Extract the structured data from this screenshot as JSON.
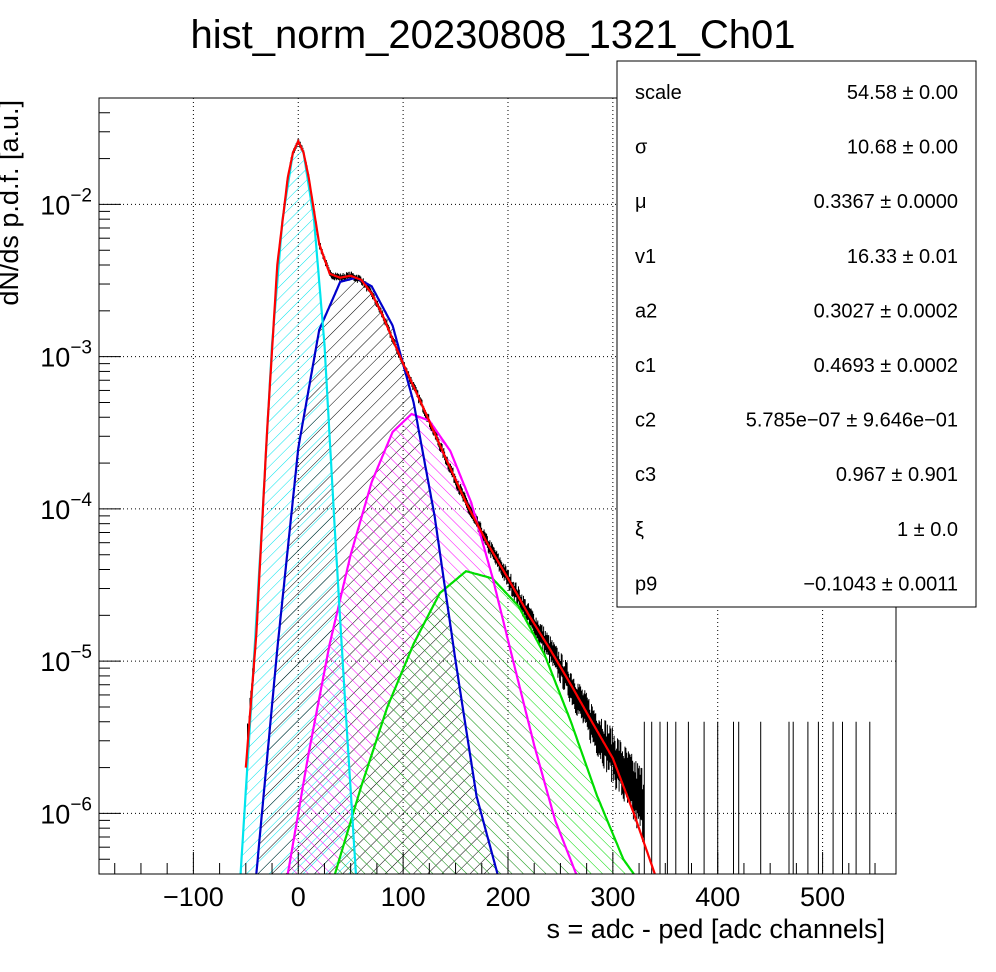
{
  "chart_data": {
    "type": "line",
    "title": "hist_norm_20230808_1321_Ch01",
    "xlabel": "s = adc - ped [adc channels]",
    "ylabel": "dN/ds p.d.f. [a.u.]",
    "xlim": [
      -190,
      570
    ],
    "ylim": [
      4e-07,
      0.05
    ],
    "log_y": true,
    "grid": true,
    "legend": "top-right",
    "x_ticks": [
      {
        "value": -100,
        "label": "−100"
      },
      {
        "value": 0,
        "label": "0"
      },
      {
        "value": 100,
        "label": "100"
      },
      {
        "value": 200,
        "label": "200"
      },
      {
        "value": 300,
        "label": "300"
      },
      {
        "value": 400,
        "label": "400"
      },
      {
        "value": 500,
        "label": "500"
      }
    ],
    "y_ticks": [
      {
        "value": 1e-06,
        "base": "10",
        "exp": "−6"
      },
      {
        "value": 1e-05,
        "base": "10",
        "exp": "−5"
      },
      {
        "value": 0.0001,
        "base": "10",
        "exp": "−4"
      },
      {
        "value": 0.001,
        "base": "10",
        "exp": "−3"
      },
      {
        "value": 0.01,
        "base": "10",
        "exp": "−2"
      }
    ],
    "histogram": {
      "color": "#000000",
      "x": [
        -50,
        -40,
        -30,
        -20,
        -10,
        -5,
        0,
        5,
        10,
        20,
        30,
        40,
        50,
        60,
        70,
        80,
        90,
        100,
        120,
        140,
        160,
        180,
        200,
        220,
        240,
        260,
        280,
        300,
        320,
        340
      ],
      "y": [
        2e-06,
        1.5e-05,
        0.0003,
        0.004,
        0.015,
        0.022,
        0.026,
        0.022,
        0.015,
        0.0055,
        0.0035,
        0.0033,
        0.0034,
        0.0032,
        0.0026,
        0.0019,
        0.0013,
        0.0009,
        0.00045,
        0.00022,
        0.00011,
        6e-05,
        3.5e-05,
        2e-05,
        1.2e-05,
        7e-06,
        4e-06,
        2.5e-06,
        1.5e-06,
        1e-06
      ]
    },
    "series": [
      {
        "color": "#ff0000",
        "x": [
          -50,
          -40,
          -30,
          -20,
          -10,
          -5,
          0,
          5,
          10,
          20,
          30,
          40,
          50,
          60,
          70,
          80,
          90,
          100,
          120,
          140,
          160,
          180,
          200,
          220,
          240,
          260,
          280,
          300,
          320,
          340
        ],
        "y": [
          2e-06,
          1.5e-05,
          0.0003,
          0.004,
          0.015,
          0.022,
          0.026,
          0.022,
          0.015,
          0.0055,
          0.0035,
          0.0033,
          0.0034,
          0.0032,
          0.0026,
          0.0019,
          0.0013,
          0.0009,
          0.00045,
          0.00022,
          0.00011,
          6e-05,
          3.5e-05,
          2e-05,
          1.2e-05,
          7e-06,
          4e-06,
          2.3e-06,
          1e-06,
          4e-07
        ]
      },
      {
        "color": "#00e5ee",
        "fill": "#00e5ee",
        "x": [
          -55,
          -45,
          -35,
          -25,
          -15,
          -5,
          0,
          5,
          15,
          25,
          35,
          45,
          55
        ],
        "y": [
          4e-07,
          5e-06,
          7e-05,
          0.0012,
          0.008,
          0.022,
          0.026,
          0.022,
          0.008,
          0.0012,
          7e-05,
          5e-06,
          4e-07
        ]
      },
      {
        "color": "#0000cc",
        "fill": "#000000",
        "x": [
          -40,
          -20,
          0,
          20,
          40,
          55,
          70,
          90,
          110,
          130,
          150,
          170,
          190
        ],
        "y": [
          4e-07,
          1.2e-05,
          0.00025,
          0.0015,
          0.0031,
          0.0033,
          0.0029,
          0.0016,
          0.0005,
          9e-05,
          1e-05,
          1.3e-06,
          4e-07
        ]
      },
      {
        "color": "#ff00ff",
        "fill": "#ff00ff",
        "x": [
          -10,
          10,
          30,
          50,
          70,
          90,
          108,
          125,
          145,
          165,
          185,
          205,
          225,
          245,
          265
        ],
        "y": [
          4e-07,
          2.5e-06,
          1.3e-05,
          5e-05,
          0.00015,
          0.00032,
          0.00042,
          0.00038,
          0.00024,
          0.00011,
          3.6e-05,
          1e-05,
          2.8e-06,
          9e-07,
          4e-07
        ]
      },
      {
        "color": "#00dd00",
        "fill": "#00dd00",
        "x": [
          35,
          60,
          85,
          110,
          135,
          160,
          185,
          210,
          235,
          260,
          285,
          310,
          320
        ],
        "y": [
          4e-07,
          1.5e-06,
          5e-06,
          1.3e-05,
          2.8e-05,
          3.9e-05,
          3.5e-05,
          2.3e-05,
          1.1e-05,
          4e-06,
          1.3e-06,
          5e-07,
          4e-07
        ]
      }
    ],
    "fit_stats": [
      {
        "name": "scale",
        "value": "54.58 ± 0.00"
      },
      {
        "name": "σ",
        "value": "10.68 ± 0.00"
      },
      {
        "name": "μ",
        "value": "0.3367 ± 0.0000"
      },
      {
        "name": "v1",
        "value": "16.33 ± 0.01"
      },
      {
        "name": "a2",
        "value": "0.3027 ± 0.0002"
      },
      {
        "name": "c1",
        "value": "0.4693 ± 0.0002"
      },
      {
        "name": "c2",
        "value": "5.785e−07 ± 9.646e−01"
      },
      {
        "name": "c3",
        "value": "0.967 ± 0.901"
      },
      {
        "name": "ξ",
        "value": "1 ± 0.0"
      },
      {
        "name": "p9",
        "value": "−0.1043 ± 0.0011"
      }
    ]
  }
}
